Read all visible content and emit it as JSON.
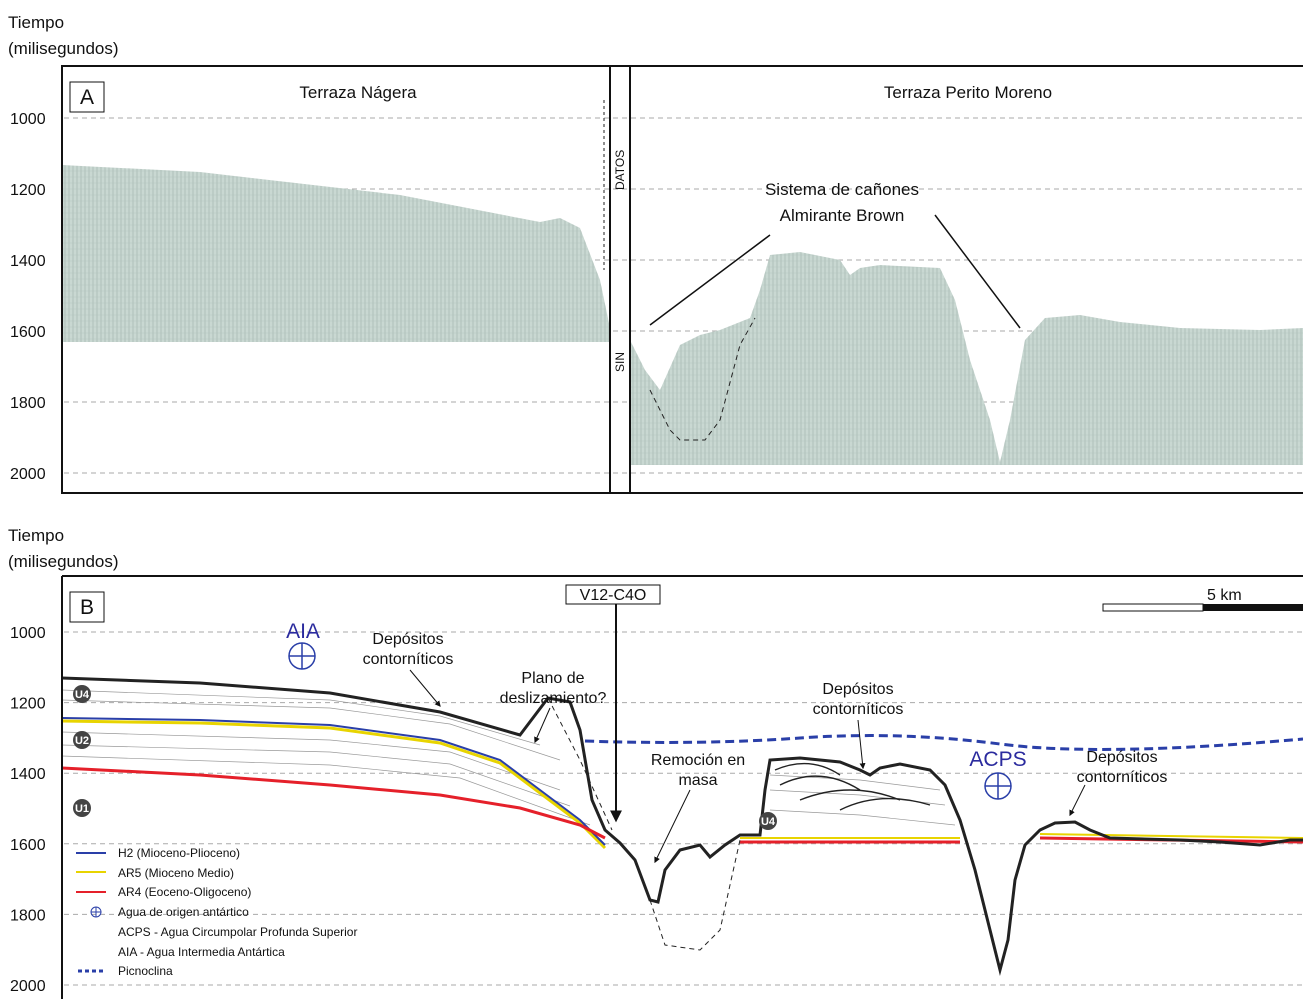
{
  "panel_a": {
    "ylabel": "Tiempo",
    "ylabel_units": "(milisegundos)",
    "label": "A",
    "yticks": [
      1000,
      1200,
      1400,
      1600,
      1800,
      2000
    ],
    "left_title": "Terraza Nágera",
    "right_title": "Terraza Perito Moreno",
    "strip_top": "DATOS",
    "strip_bottom": "SIN",
    "annotation_line1": "Sistema de cañones",
    "annotation_line2": "Almirante Brown"
  },
  "panel_b": {
    "ylabel": "Tiempo",
    "ylabel_units": "(milisegundos)",
    "label": "B",
    "yticks": [
      1000,
      1200,
      1400,
      1600,
      1800,
      2000
    ],
    "profile": "V12-C4O",
    "scale": "5 km",
    "aia": "AIA",
    "acps": "ACPS",
    "deposits_1": [
      "Depósitos",
      "contorníticos"
    ],
    "deposits_2": [
      "Depósitos",
      "contorníticos"
    ],
    "deposits_3": [
      "Depósitos",
      "contorníticos"
    ],
    "slide_plane": [
      "Plano de",
      "deslizamiento?"
    ],
    "mass_wasting": [
      "Remoción en",
      "masa"
    ],
    "units": [
      "U4",
      "U2",
      "U1",
      "U4"
    ],
    "legend": [
      "H2  (Mioceno-Plioceno)",
      "AR5 (Mioceno Medio)",
      "AR4  (Eoceno-Oligoceno)",
      "Agua de origen antártico",
      "ACPS - Agua Circumpolar Profunda Superior",
      "AIA - Agua Intermedia Antártica",
      "Picnoclina"
    ]
  }
}
